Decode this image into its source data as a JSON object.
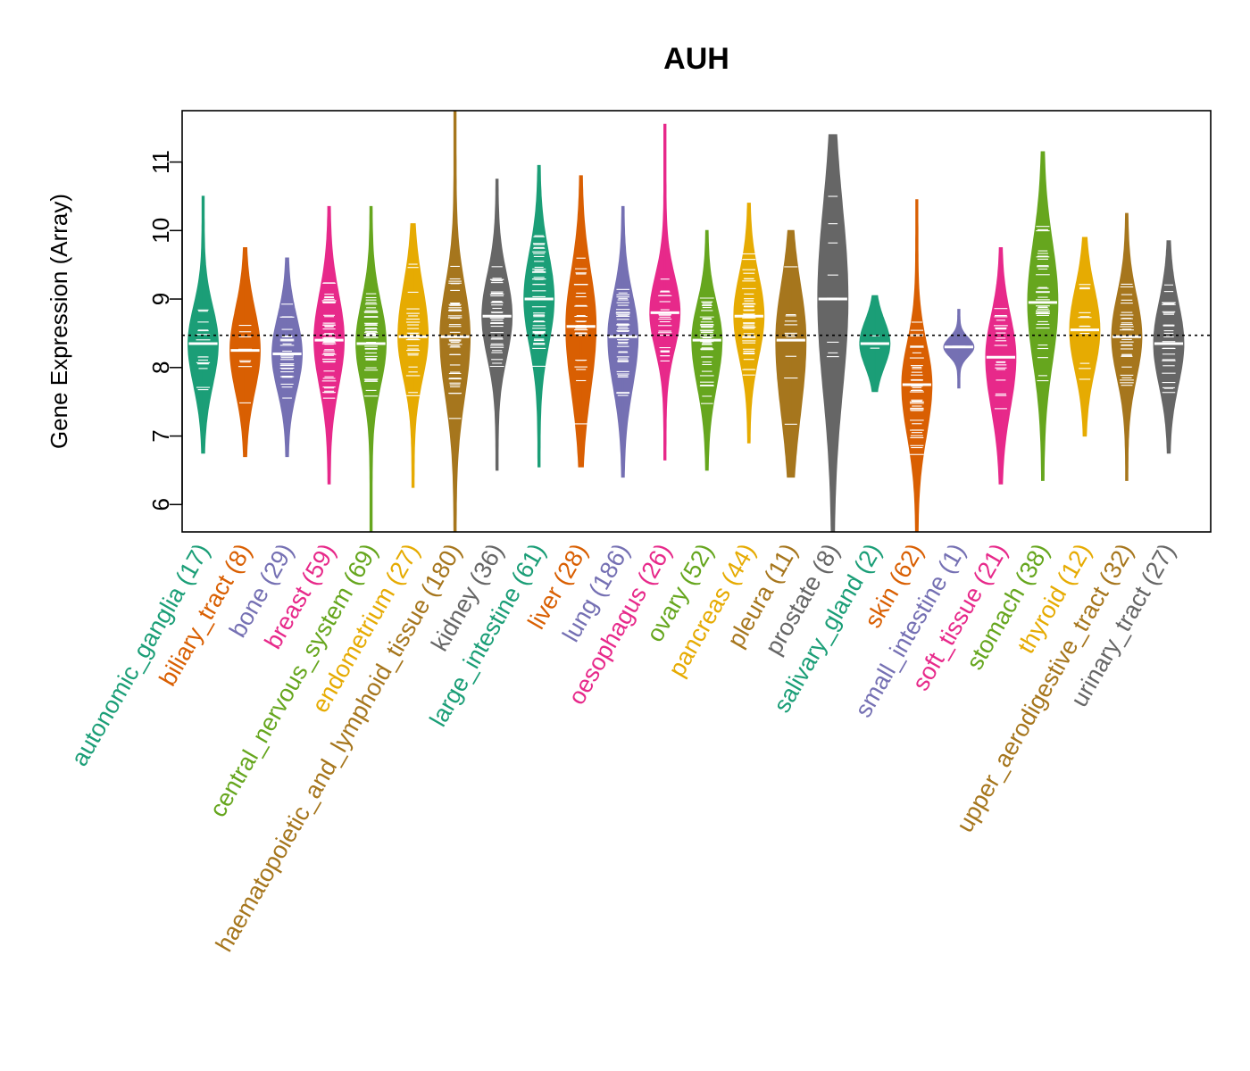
{
  "chart_data": {
    "type": "violin",
    "title": "AUH",
    "xlabel": "",
    "ylabel": "Gene Expression (Array)",
    "ylim": [
      5.6,
      11.75
    ],
    "yticks": [
      6,
      7,
      8,
      9,
      10,
      11
    ],
    "reference_line": 8.47,
    "categories": [
      {
        "name": "autonomic_ganglia",
        "n": 17,
        "label": "autonomic_ganglia (17)",
        "color": "#1B9E77",
        "min": 6.75,
        "max": 10.5,
        "median": 8.35,
        "q1": 7.9,
        "q3": 8.75
      },
      {
        "name": "biliary_tract",
        "n": 8,
        "label": "biliary_tract (8)",
        "color": "#D95F02",
        "min": 6.7,
        "max": 9.75,
        "median": 8.25,
        "q1": 7.8,
        "q3": 8.7
      },
      {
        "name": "bone",
        "n": 29,
        "label": "bone (29)",
        "color": "#7570B3",
        "min": 6.7,
        "max": 9.6,
        "median": 8.2,
        "q1": 7.8,
        "q3": 8.6
      },
      {
        "name": "breast",
        "n": 59,
        "label": "breast (59)",
        "color": "#E7298A",
        "min": 6.3,
        "max": 10.35,
        "median": 8.4,
        "q1": 7.9,
        "q3": 8.9
      },
      {
        "name": "central_nervous_system",
        "n": 69,
        "label": "central_nervous_system (69)",
        "color": "#66A61E",
        "min": 5.6,
        "max": 10.35,
        "median": 8.35,
        "q1": 7.9,
        "q3": 8.8
      },
      {
        "name": "endometrium",
        "n": 27,
        "label": "endometrium (27)",
        "color": "#E6AB02",
        "min": 6.25,
        "max": 10.1,
        "median": 8.45,
        "q1": 8.0,
        "q3": 9.0
      },
      {
        "name": "haematopoietic_and_lymphoid_tissue",
        "n": 180,
        "label": "haematopoietic_and_lymphoid_tissue (180)",
        "color": "#A6761D",
        "min": 5.6,
        "max": 11.75,
        "median": 8.45,
        "q1": 7.8,
        "q3": 9.0
      },
      {
        "name": "kidney",
        "n": 36,
        "label": "kidney (36)",
        "color": "#666666",
        "min": 6.5,
        "max": 10.75,
        "median": 8.75,
        "q1": 8.3,
        "q3": 9.2
      },
      {
        "name": "large_intestine",
        "n": 61,
        "label": "large_intestine (61)",
        "color": "#1B9E77",
        "min": 6.55,
        "max": 10.95,
        "median": 9.0,
        "q1": 8.5,
        "q3": 9.5
      },
      {
        "name": "liver",
        "n": 28,
        "label": "liver (28)",
        "color": "#D95F02",
        "min": 6.55,
        "max": 10.8,
        "median": 8.6,
        "q1": 7.9,
        "q3": 9.2
      },
      {
        "name": "lung",
        "n": 186,
        "label": "lung (186)",
        "color": "#7570B3",
        "min": 6.4,
        "max": 10.35,
        "median": 8.45,
        "q1": 7.9,
        "q3": 8.9
      },
      {
        "name": "oesophagus",
        "n": 26,
        "label": "oesophagus (26)",
        "color": "#E7298A",
        "min": 6.65,
        "max": 11.55,
        "median": 8.8,
        "q1": 8.4,
        "q3": 9.2
      },
      {
        "name": "ovary",
        "n": 52,
        "label": "ovary (52)",
        "color": "#66A61E",
        "min": 6.5,
        "max": 10.0,
        "median": 8.4,
        "q1": 7.9,
        "q3": 8.8
      },
      {
        "name": "pancreas",
        "n": 44,
        "label": "pancreas (44)",
        "color": "#E6AB02",
        "min": 6.9,
        "max": 10.4,
        "median": 8.75,
        "q1": 8.3,
        "q3": 9.2
      },
      {
        "name": "pleura",
        "n": 11,
        "label": "pleura (11)",
        "color": "#A6761D",
        "min": 6.4,
        "max": 10.0,
        "median": 8.4,
        "q1": 7.6,
        "q3": 9.0
      },
      {
        "name": "prostate",
        "n": 8,
        "label": "prostate (8)",
        "color": "#666666",
        "min": 5.6,
        "max": 11.4,
        "median": 9.0,
        "q1": 8.0,
        "q3": 10.0
      },
      {
        "name": "salivary_gland",
        "n": 2,
        "label": "salivary_gland (2)",
        "color": "#1B9E77",
        "min": 7.65,
        "max": 9.05,
        "median": 8.35,
        "q1": 8.1,
        "q3": 8.6
      },
      {
        "name": "skin",
        "n": 62,
        "label": "skin (62)",
        "color": "#D95F02",
        "min": 5.6,
        "max": 10.45,
        "median": 7.75,
        "q1": 7.2,
        "q3": 8.2
      },
      {
        "name": "small_intestine",
        "n": 1,
        "label": "small_intestine (1)",
        "color": "#7570B3",
        "min": 7.7,
        "max": 8.85,
        "median": 8.3,
        "q1": 8.2,
        "q3": 8.4
      },
      {
        "name": "soft_tissue",
        "n": 21,
        "label": "soft_tissue (21)",
        "color": "#E7298A",
        "min": 6.3,
        "max": 9.75,
        "median": 8.15,
        "q1": 7.6,
        "q3": 8.6
      },
      {
        "name": "stomach",
        "n": 38,
        "label": "stomach (38)",
        "color": "#66A61E",
        "min": 6.35,
        "max": 11.15,
        "median": 8.95,
        "q1": 8.3,
        "q3": 9.6
      },
      {
        "name": "thyroid",
        "n": 12,
        "label": "thyroid (12)",
        "color": "#E6AB02",
        "min": 7.0,
        "max": 9.9,
        "median": 8.55,
        "q1": 8.1,
        "q3": 9.0
      },
      {
        "name": "upper_aerodigestive_tract",
        "n": 32,
        "label": "upper_aerodigestive_tract (32)",
        "color": "#A6761D",
        "min": 6.35,
        "max": 10.25,
        "median": 8.45,
        "q1": 8.0,
        "q3": 8.9
      },
      {
        "name": "urinary_tract",
        "n": 27,
        "label": "urinary_tract (27)",
        "color": "#666666",
        "min": 6.75,
        "max": 9.85,
        "median": 8.35,
        "q1": 7.9,
        "q3": 8.8
      }
    ]
  }
}
